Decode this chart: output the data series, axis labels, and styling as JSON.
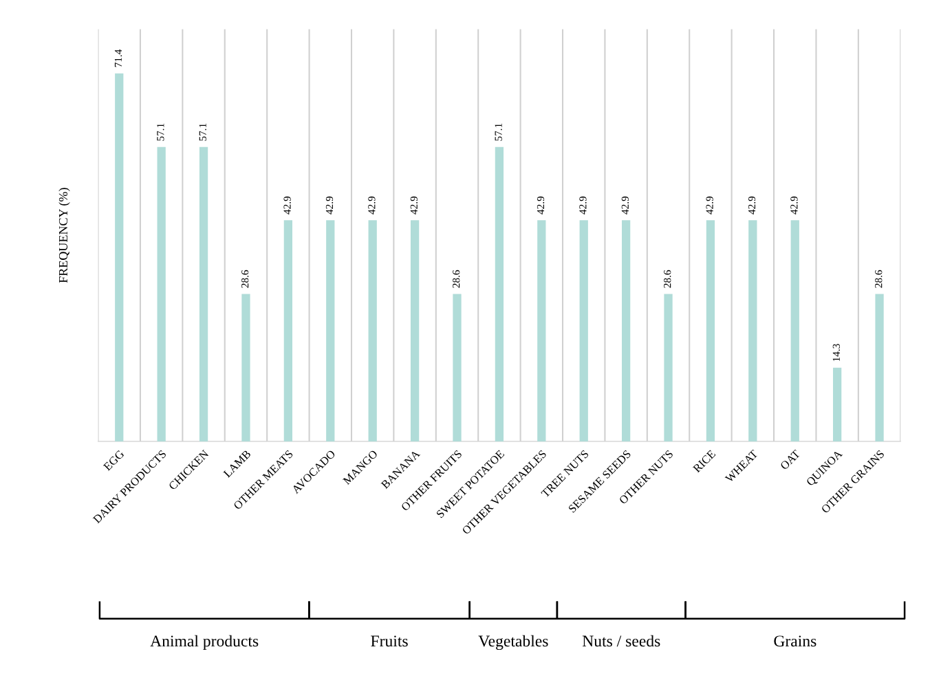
{
  "chart_data": {
    "type": "bar",
    "ylabel": "FREQUENCY (%)",
    "categories": [
      "EGG",
      "DAIRY PRODUCTS",
      "CHICKEN",
      "LAMB",
      "OTHER MEATS",
      "AVOCADO",
      "MANGO",
      "BANANA",
      "OTHER FRUITS",
      "SWEET POTATOE",
      "OTHER VEGETABLES",
      "TREE NUTS",
      "SESAME SEEDS",
      "OTHER NUTS",
      "RICE",
      "WHEAT",
      "OAT",
      "QUINOA",
      "OTHER GRAINS"
    ],
    "values": [
      71.4,
      57.1,
      57.1,
      28.6,
      42.9,
      42.9,
      42.9,
      42.9,
      28.6,
      57.1,
      42.9,
      42.9,
      42.9,
      28.6,
      42.9,
      42.9,
      42.9,
      14.3,
      28.6
    ],
    "color": "#b0dcd8",
    "data_labels": true,
    "grid": "x",
    "annotations": [
      "Animal products",
      "Fruits",
      "Vegetables",
      "Nuts / seeds",
      "Grains"
    ]
  }
}
